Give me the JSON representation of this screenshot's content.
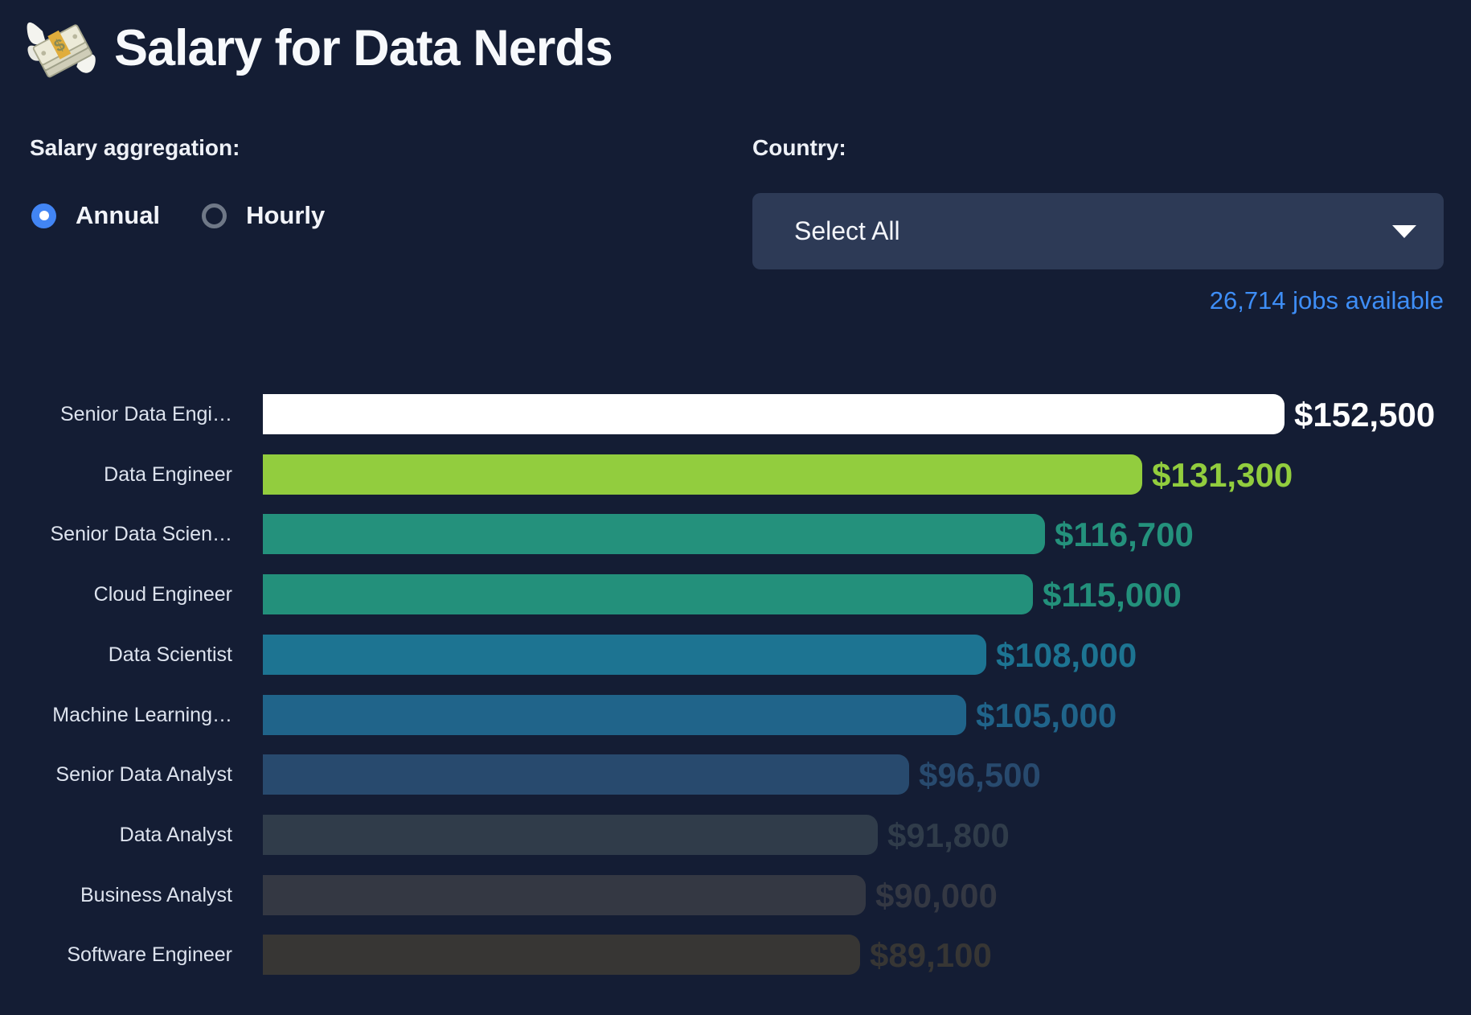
{
  "header": {
    "title": "Salary for Data Nerds",
    "icon": "money-with-wings"
  },
  "controls": {
    "aggregation_label": "Salary aggregation:",
    "aggregation_options": [
      {
        "label": "Annual",
        "selected": true
      },
      {
        "label": "Hourly",
        "selected": false
      }
    ],
    "country_label": "Country:",
    "country_value": "Select All",
    "jobs_available": "26,714 jobs available"
  },
  "colors": {
    "background": "#141d34",
    "dropdown_bg": "#2d3a56",
    "link_blue": "#3e8ef7",
    "radio_selected": "#4285f4",
    "radio_unselected_ring": "#6f7887"
  },
  "chart_data": {
    "type": "bar",
    "orientation": "horizontal",
    "title": "",
    "xlabel": "",
    "ylabel": "",
    "xlim": [
      0,
      152500
    ],
    "grid": false,
    "legend": false,
    "categories": [
      "Senior Data Engi…",
      "Data Engineer",
      "Senior Data Scien…",
      "Cloud Engineer",
      "Data Scientist",
      "Machine Learning…",
      "Senior Data Analyst",
      "Data Analyst",
      "Business Analyst",
      "Software Engineer"
    ],
    "values": [
      152500,
      131300,
      116700,
      115000,
      108000,
      105000,
      96500,
      91800,
      90000,
      89100
    ],
    "value_labels": [
      "$152,500",
      "$131,300",
      "$116,700",
      "$115,000",
      "$108,000",
      "$105,000",
      "$96,500",
      "$91,800",
      "$90,000",
      "$89,100"
    ],
    "bar_colors": [
      "#ffffff",
      "#92cd3e",
      "#24917c",
      "#23907b",
      "#1d7492",
      "#20648a",
      "#284a6e",
      "#303c4a",
      "#343843",
      "#373634"
    ]
  }
}
